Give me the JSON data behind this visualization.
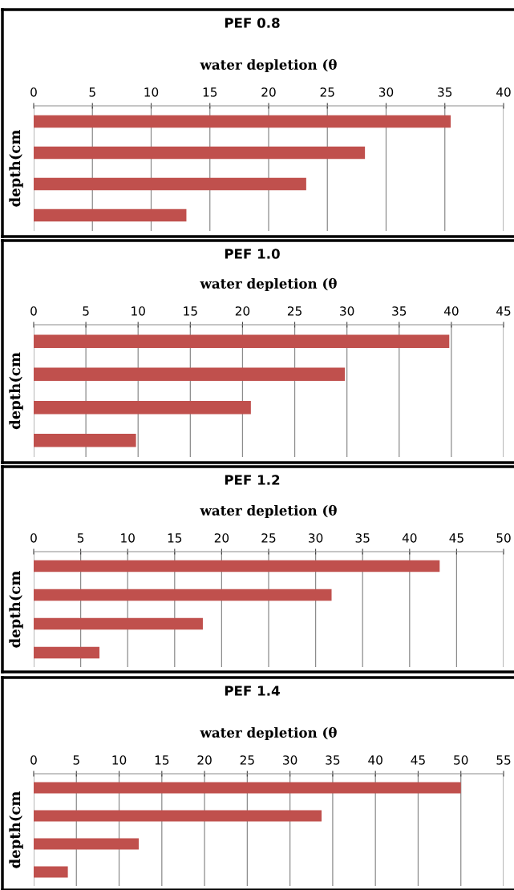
{
  "chart_data": [
    {
      "type": "bar",
      "orientation": "horizontal",
      "title": "PEF 0.8",
      "xlabel": "water depletion (θ",
      "ylabel": "depth(cm",
      "categories": [
        null,
        null,
        null,
        null
      ],
      "values": [
        35.5,
        28.2,
        23.2,
        13.0
      ],
      "color": "#c0504d",
      "xlim": [
        0,
        40
      ],
      "xticks": [
        0,
        5,
        10,
        15,
        20,
        25,
        30,
        35,
        40
      ],
      "grid": "x"
    },
    {
      "type": "bar",
      "orientation": "horizontal",
      "title": "PEF 1.0",
      "xlabel": "water depletion (θ",
      "ylabel": "depth(cm",
      "categories": [
        null,
        null,
        null,
        null
      ],
      "values": [
        39.8,
        29.8,
        20.8,
        9.8
      ],
      "color": "#c0504d",
      "xlim": [
        0,
        45
      ],
      "xticks": [
        0,
        5,
        10,
        15,
        20,
        25,
        30,
        35,
        40,
        45
      ],
      "grid": "x"
    },
    {
      "type": "bar",
      "orientation": "horizontal",
      "title": "PEF 1.2",
      "xlabel": "water depletion (θ",
      "ylabel": "depth(cm",
      "categories": [
        null,
        null,
        null,
        null
      ],
      "values": [
        43.2,
        31.7,
        18.0,
        7.0
      ],
      "color": "#c0504d",
      "xlim": [
        0,
        50
      ],
      "xticks": [
        0,
        5,
        10,
        15,
        20,
        25,
        30,
        35,
        40,
        45,
        50
      ],
      "grid": "x"
    },
    {
      "type": "bar",
      "orientation": "horizontal",
      "title": "PEF 1.4",
      "xlabel": "water depletion (θ",
      "ylabel": "depth(cm",
      "categories": [
        null,
        null,
        null,
        null
      ],
      "values": [
        50.0,
        33.7,
        12.3,
        4.0
      ],
      "color": "#c0504d",
      "xlim": [
        0,
        55
      ],
      "xticks": [
        0,
        5,
        10,
        15,
        20,
        25,
        30,
        35,
        40,
        45,
        50,
        55
      ],
      "grid": "x"
    }
  ]
}
